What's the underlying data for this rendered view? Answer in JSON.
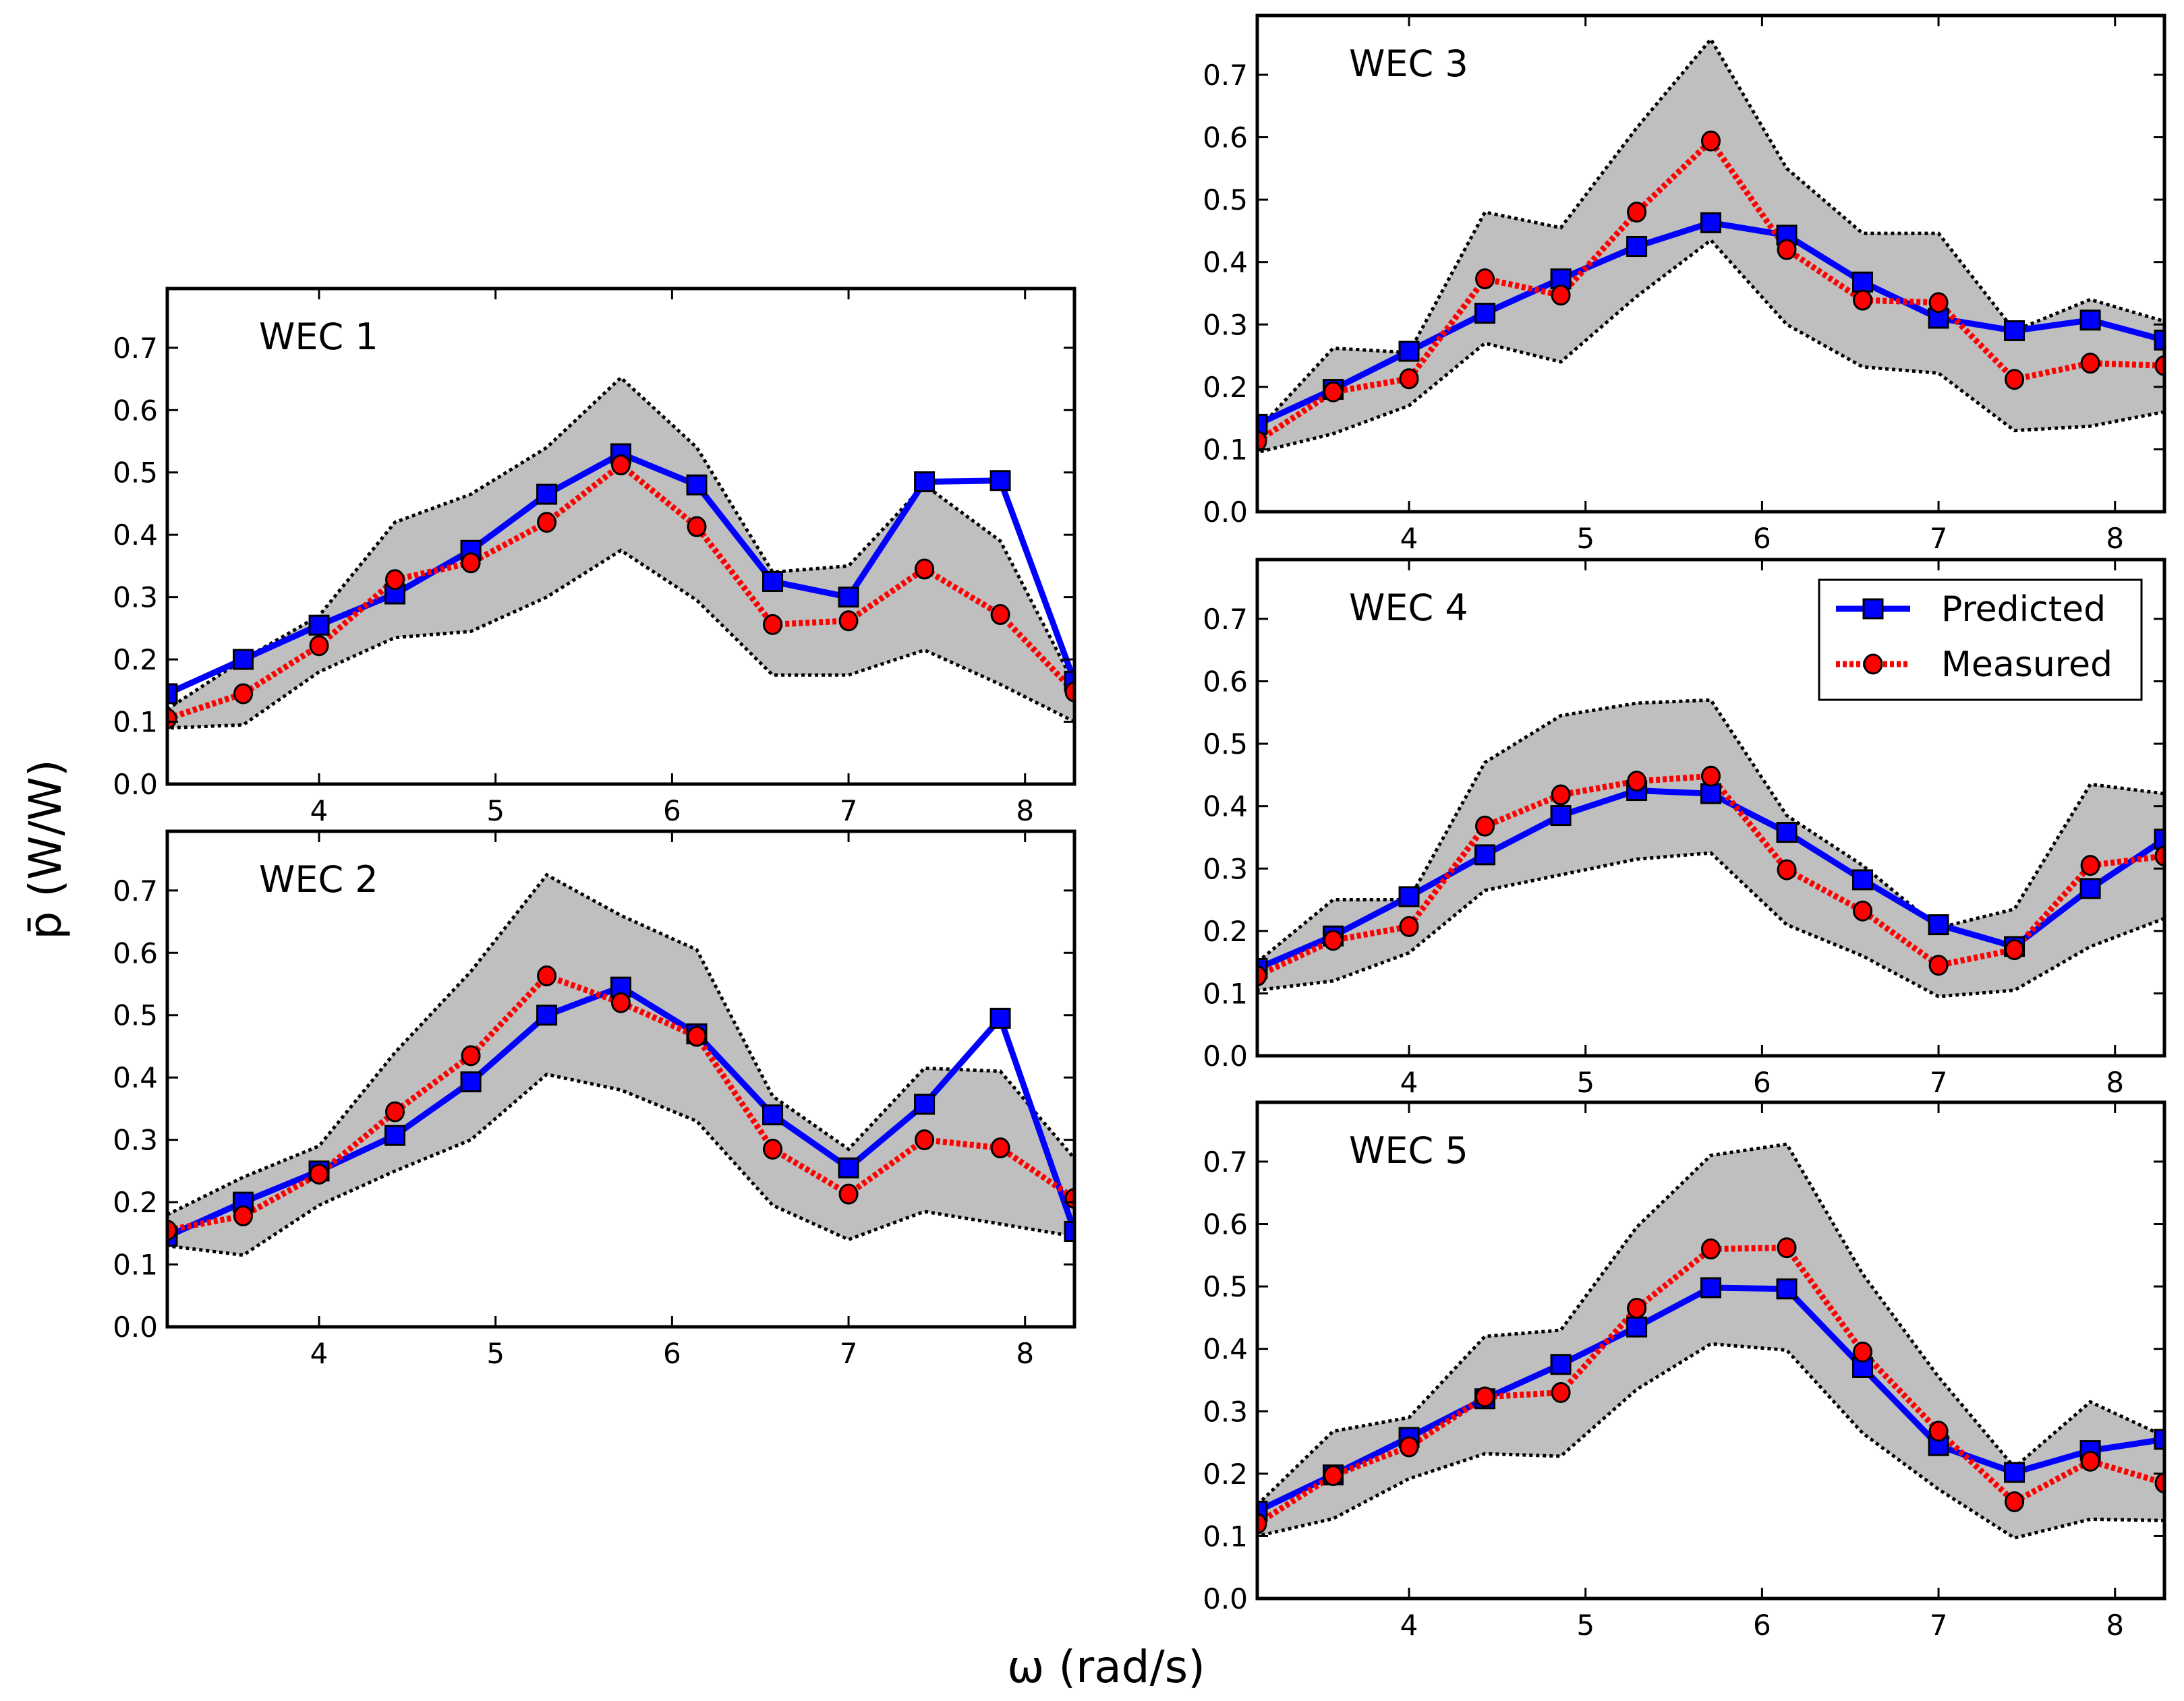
{
  "chart_data": {
    "type": "line",
    "xlabel": "ω (rad/s)",
    "ylabel": "p̄ (W/W)",
    "xlim": [
      3.14,
      8.28
    ],
    "ylim": [
      0,
      0.795
    ],
    "xticks": [
      4,
      5,
      6,
      7,
      8
    ],
    "xtick_labels": [
      "4",
      "5",
      "6",
      "7",
      "8"
    ],
    "yticks": [
      0,
      0.1,
      0.2,
      0.3,
      0.4,
      0.5,
      0.6,
      0.7
    ],
    "ytick_labels": [
      "0.0",
      "0.1",
      "0.2",
      "0.3",
      "0.4",
      "0.5",
      "0.6",
      "0.7"
    ],
    "x": [
      3.14,
      3.57,
      4.0,
      4.43,
      4.86,
      5.29,
      5.71,
      6.14,
      6.57,
      7.0,
      7.43,
      7.86,
      8.28
    ],
    "legend": {
      "placement": "top-right of WEC 4",
      "entries": [
        "Predicted",
        "Measured"
      ]
    },
    "colors": {
      "predicted": "#0000ff",
      "measured": "#ff0000",
      "band": "#bfbfbf",
      "band_edge": "#000000"
    },
    "panels": [
      {
        "title": "WEC 1",
        "predicted": [
          0.145,
          0.2,
          0.255,
          0.305,
          0.375,
          0.465,
          0.53,
          0.48,
          0.325,
          0.3,
          0.485,
          0.487,
          0.165
        ],
        "measured": [
          0.105,
          0.145,
          0.222,
          0.328,
          0.355,
          0.42,
          0.512,
          0.413,
          0.256,
          0.262,
          0.345,
          0.272,
          0.148
        ],
        "upper": [
          0.12,
          0.2,
          0.27,
          0.42,
          0.465,
          0.54,
          0.652,
          0.54,
          0.34,
          0.35,
          0.48,
          0.39,
          0.16
        ],
        "lower": [
          0.09,
          0.095,
          0.18,
          0.235,
          0.245,
          0.3,
          0.375,
          0.295,
          0.175,
          0.175,
          0.215,
          0.16,
          0.1
        ]
      },
      {
        "title": "WEC 2",
        "predicted": [
          0.145,
          0.2,
          0.25,
          0.307,
          0.393,
          0.5,
          0.545,
          0.47,
          0.34,
          0.255,
          0.357,
          0.495,
          0.153
        ],
        "measured": [
          0.155,
          0.178,
          0.245,
          0.345,
          0.435,
          0.563,
          0.52,
          0.466,
          0.285,
          0.213,
          0.3,
          0.287,
          0.206
        ],
        "upper": [
          0.18,
          0.24,
          0.29,
          0.44,
          0.57,
          0.725,
          0.66,
          0.605,
          0.37,
          0.285,
          0.415,
          0.41,
          0.27
        ],
        "lower": [
          0.13,
          0.115,
          0.195,
          0.25,
          0.3,
          0.405,
          0.38,
          0.33,
          0.195,
          0.14,
          0.185,
          0.165,
          0.145
        ]
      },
      {
        "title": "WEC 3",
        "predicted": [
          0.14,
          0.196,
          0.257,
          0.318,
          0.373,
          0.425,
          0.463,
          0.443,
          0.368,
          0.31,
          0.29,
          0.307,
          0.275
        ],
        "measured": [
          0.113,
          0.192,
          0.213,
          0.373,
          0.347,
          0.48,
          0.594,
          0.42,
          0.339,
          0.335,
          0.212,
          0.238,
          0.234
        ],
        "upper": [
          0.13,
          0.262,
          0.255,
          0.48,
          0.455,
          0.615,
          0.757,
          0.55,
          0.446,
          0.446,
          0.29,
          0.34,
          0.305
        ],
        "lower": [
          0.095,
          0.125,
          0.17,
          0.27,
          0.24,
          0.345,
          0.435,
          0.3,
          0.232,
          0.222,
          0.13,
          0.137,
          0.16
        ]
      },
      {
        "title": "WEC 4",
        "predicted": [
          0.14,
          0.192,
          0.255,
          0.322,
          0.385,
          0.425,
          0.42,
          0.358,
          0.282,
          0.21,
          0.175,
          0.268,
          0.347
        ],
        "measured": [
          0.128,
          0.185,
          0.207,
          0.368,
          0.418,
          0.44,
          0.448,
          0.298,
          0.232,
          0.145,
          0.17,
          0.305,
          0.32
        ],
        "upper": [
          0.15,
          0.25,
          0.25,
          0.47,
          0.545,
          0.565,
          0.57,
          0.385,
          0.305,
          0.205,
          0.235,
          0.435,
          0.42
        ],
        "lower": [
          0.105,
          0.12,
          0.165,
          0.265,
          0.29,
          0.315,
          0.325,
          0.21,
          0.16,
          0.095,
          0.105,
          0.175,
          0.22
        ]
      },
      {
        "title": "WEC 5",
        "predicted": [
          0.14,
          0.198,
          0.258,
          0.32,
          0.375,
          0.435,
          0.498,
          0.496,
          0.37,
          0.245,
          0.202,
          0.237,
          0.255
        ],
        "measured": [
          0.12,
          0.197,
          0.243,
          0.323,
          0.33,
          0.465,
          0.56,
          0.562,
          0.395,
          0.268,
          0.155,
          0.22,
          0.185
        ],
        "upper": [
          0.15,
          0.268,
          0.29,
          0.42,
          0.43,
          0.595,
          0.71,
          0.728,
          0.52,
          0.355,
          0.21,
          0.315,
          0.26
        ],
        "lower": [
          0.1,
          0.128,
          0.192,
          0.232,
          0.228,
          0.335,
          0.408,
          0.398,
          0.265,
          0.175,
          0.097,
          0.127,
          0.125
        ]
      }
    ]
  }
}
